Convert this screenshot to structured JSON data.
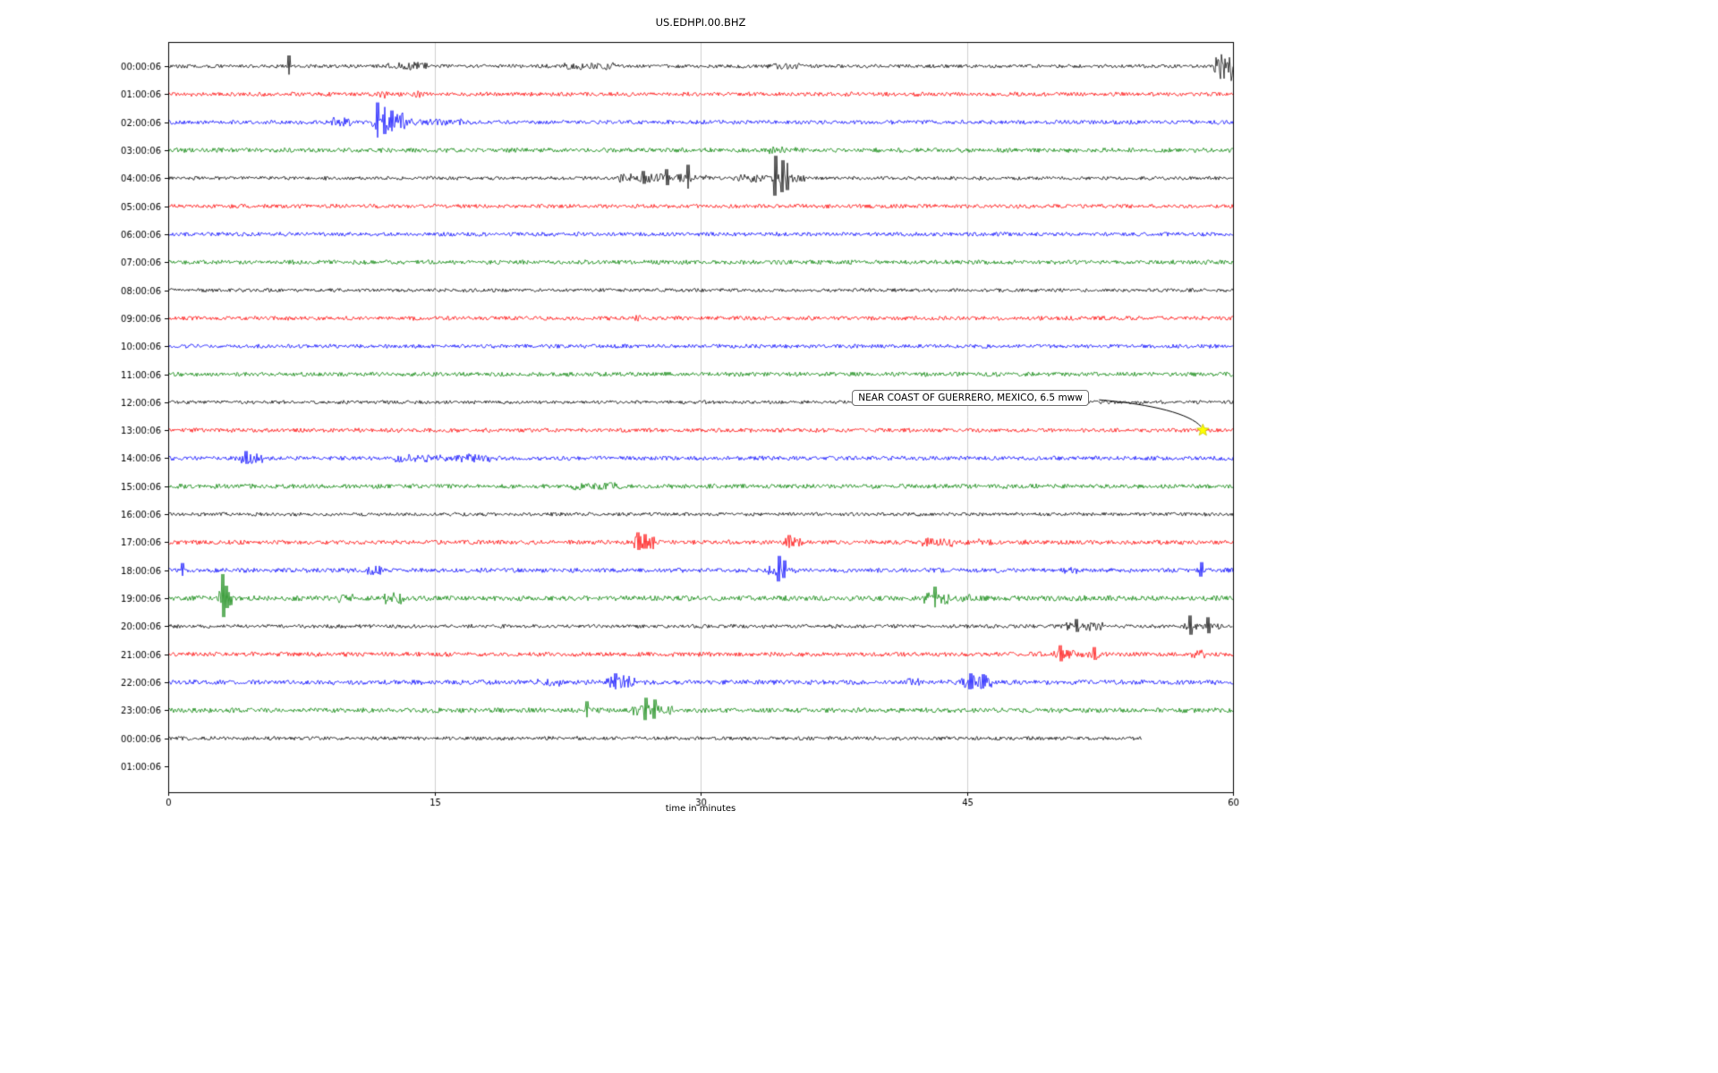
{
  "chart_data": {
    "type": "line",
    "subtype": "seismogram-helicorder",
    "title": "US.EDHPI.00.BHZ",
    "xlabel": "time in minutes",
    "xlim": [
      0,
      60
    ],
    "x_ticks": [
      0,
      15,
      30,
      45,
      60
    ],
    "grid": "vertical-gridlines-at-xticks",
    "row_color_cycle": [
      "#000000",
      "#ff0000",
      "#0000ff",
      "#008000"
    ],
    "annotation": {
      "text": "NEAR COAST OF GUERRERO, MEXICO, 6.5 mww",
      "row_label": "13:00:06",
      "row_index": 13,
      "x_minutes": 58.3,
      "marker": "yellow-star",
      "marker_color": "#ffff00"
    },
    "rows": [
      {
        "label": "00:00:06",
        "color": "#000000",
        "base": 1.0,
        "end": 60,
        "bursts": [
          [
            12.4,
            14.6,
            2.3
          ],
          [
            22.3,
            25.2,
            2.2
          ],
          [
            33.5,
            35.6,
            1.9
          ],
          [
            58.9,
            60,
            8
          ]
        ],
        "spikes": [
          [
            6.8,
            12
          ]
        ]
      },
      {
        "label": "01:00:06",
        "color": "#ff0000",
        "base": 1.15,
        "end": 60,
        "bursts": [
          [
            11.7,
            12.4,
            2.2
          ],
          [
            13.7,
            14.2,
            1.8
          ]
        ],
        "spikes": []
      },
      {
        "label": "02:00:06",
        "color": "#0000ff",
        "base": 1.15,
        "end": 60,
        "bursts": [
          [
            9.2,
            10.3,
            2.4
          ],
          [
            11.4,
            13.4,
            4.5
          ],
          [
            13.4,
            16.5,
            1.7
          ]
        ],
        "spikes": [
          [
            11.8,
            22
          ],
          [
            12.2,
            17
          ],
          [
            12.6,
            13
          ]
        ]
      },
      {
        "label": "03:00:06",
        "color": "#008000",
        "base": 1.25,
        "end": 60,
        "bursts": [
          [
            33.8,
            35.6,
            1.6
          ]
        ],
        "spikes": []
      },
      {
        "label": "04:00:06",
        "color": "#000000",
        "base": 1.0,
        "end": 60,
        "bursts": [
          [
            25.4,
            30.5,
            2.4
          ],
          [
            31.8,
            36,
            2.4
          ]
        ],
        "spikes": [
          [
            26.8,
            8
          ],
          [
            28.1,
            10
          ],
          [
            29.3,
            15
          ],
          [
            34.2,
            25
          ],
          [
            34.6,
            20
          ],
          [
            34.9,
            17
          ]
        ]
      },
      {
        "label": "05:00:06",
        "color": "#ff0000",
        "base": 1.15,
        "end": 60,
        "bursts": [],
        "spikes": []
      },
      {
        "label": "06:00:06",
        "color": "#0000ff",
        "base": 1.1,
        "end": 60,
        "bursts": [],
        "spikes": []
      },
      {
        "label": "07:00:06",
        "color": "#008000",
        "base": 1.2,
        "end": 60,
        "bursts": [],
        "spikes": []
      },
      {
        "label": "08:00:06",
        "color": "#000000",
        "base": 1.0,
        "end": 60,
        "bursts": [],
        "spikes": []
      },
      {
        "label": "09:00:06",
        "color": "#ff0000",
        "base": 1.15,
        "end": 60,
        "bursts": [
          [
            26.3,
            26.8,
            1.5
          ]
        ],
        "spikes": []
      },
      {
        "label": "10:00:06",
        "color": "#0000ff",
        "base": 1.1,
        "end": 60,
        "bursts": [],
        "spikes": []
      },
      {
        "label": "11:00:06",
        "color": "#008000",
        "base": 1.2,
        "end": 60,
        "bursts": [],
        "spikes": []
      },
      {
        "label": "12:00:06",
        "color": "#000000",
        "base": 1.0,
        "end": 60,
        "bursts": [],
        "spikes": []
      },
      {
        "label": "13:00:06",
        "color": "#ff0000",
        "base": 1.15,
        "end": 60,
        "bursts": [],
        "spikes": []
      },
      {
        "label": "14:00:06",
        "color": "#0000ff",
        "base": 1.2,
        "end": 60,
        "bursts": [
          [
            4.1,
            5.3,
            2.8
          ],
          [
            12.8,
            18.2,
            2.0
          ]
        ],
        "spikes": [
          [
            4.4,
            8
          ]
        ]
      },
      {
        "label": "15:00:06",
        "color": "#008000",
        "base": 1.25,
        "end": 60,
        "bursts": [
          [
            22.8,
            25.6,
            1.7
          ]
        ],
        "spikes": []
      },
      {
        "label": "16:00:06",
        "color": "#000000",
        "base": 1.0,
        "end": 60,
        "bursts": [],
        "spikes": []
      },
      {
        "label": "17:00:06",
        "color": "#ff0000",
        "base": 1.25,
        "end": 60,
        "bursts": [
          [
            26.2,
            27.4,
            3.2
          ],
          [
            34.6,
            35.7,
            2.2
          ],
          [
            42.4,
            44.2,
            2.0
          ],
          [
            45.6,
            46.4,
            1.9
          ]
        ],
        "spikes": [
          [
            26.5,
            11
          ],
          [
            26.9,
            9
          ],
          [
            35.0,
            8
          ]
        ]
      },
      {
        "label": "18:00:06",
        "color": "#0000ff",
        "base": 1.25,
        "end": 60,
        "bursts": [
          [
            11.2,
            12.0,
            2.2
          ],
          [
            33.8,
            35.4,
            2.2
          ],
          [
            50.3,
            51.2,
            1.6
          ]
        ],
        "spikes": [
          [
            0.8,
            8
          ],
          [
            34.4,
            16
          ],
          [
            34.7,
            11
          ],
          [
            58.2,
            9
          ]
        ]
      },
      {
        "label": "19:00:06",
        "color": "#008000",
        "base": 1.45,
        "end": 60,
        "bursts": [
          [
            2.8,
            3.6,
            3.0
          ],
          [
            9.6,
            10.4,
            2.2
          ],
          [
            12.2,
            13.4,
            2.4
          ],
          [
            42.6,
            44.0,
            2.6
          ],
          [
            44.4,
            45.2,
            1.8
          ]
        ],
        "spikes": [
          [
            3.1,
            27
          ],
          [
            3.3,
            14
          ],
          [
            43.2,
            13
          ]
        ]
      },
      {
        "label": "20:00:06",
        "color": "#000000",
        "base": 1.05,
        "end": 60,
        "bursts": [
          [
            50.6,
            52.8,
            2.6
          ],
          [
            57.2,
            59.2,
            2.0
          ]
        ],
        "spikes": [
          [
            51.2,
            8
          ],
          [
            57.6,
            12
          ],
          [
            58.6,
            10
          ]
        ]
      },
      {
        "label": "21:00:06",
        "color": "#ff0000",
        "base": 1.25,
        "end": 60,
        "bursts": [
          [
            49.9,
            52.6,
            1.9
          ],
          [
            57.6,
            58.4,
            1.9
          ]
        ],
        "spikes": [
          [
            50.3,
            10
          ],
          [
            52.2,
            8
          ]
        ]
      },
      {
        "label": "22:00:06",
        "color": "#0000ff",
        "base": 1.35,
        "end": 60,
        "bursts": [
          [
            20.7,
            22.2,
            1.9
          ],
          [
            24.7,
            26.4,
            2.8
          ],
          [
            41.6,
            42.4,
            1.8
          ],
          [
            44.6,
            46.4,
            2.8
          ]
        ],
        "spikes": [
          [
            25.2,
            10
          ],
          [
            45.2,
            10
          ],
          [
            45.9,
            9
          ]
        ]
      },
      {
        "label": "23:00:06",
        "color": "#008000",
        "base": 1.35,
        "end": 60,
        "bursts": [
          [
            26.1,
            28.4,
            2.4
          ]
        ],
        "spikes": [
          [
            23.6,
            10
          ],
          [
            26.9,
            14
          ],
          [
            27.4,
            12
          ]
        ]
      },
      {
        "label": "00:00:06",
        "color": "#000000",
        "base": 1.05,
        "end": 54.9,
        "bursts": [],
        "spikes": []
      },
      {
        "label": "01:00:06",
        "color": "#000000",
        "base": 0,
        "end": 0,
        "bursts": [],
        "spikes": []
      }
    ]
  }
}
